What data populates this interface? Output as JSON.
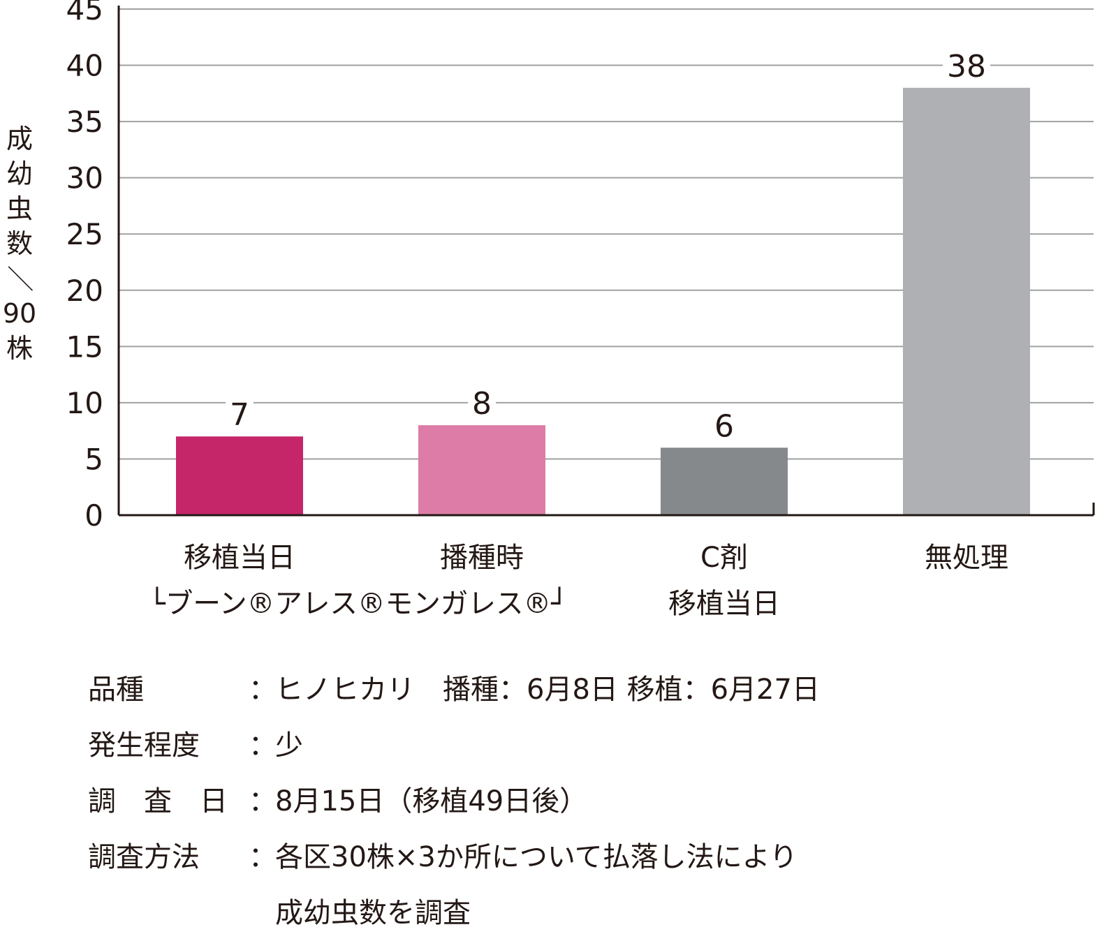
{
  "chart_data": {
    "type": "bar",
    "ylabel": "成幼虫数／90株",
    "ylim": [
      0,
      45
    ],
    "yticks": [
      0,
      5,
      10,
      15,
      20,
      25,
      30,
      35,
      40,
      45
    ],
    "grid": true,
    "categories": [
      {
        "line1": "移植当日",
        "line2": "└ブーン®アレス®モンガレス®┘",
        "value": 7,
        "color": "#c5266a"
      },
      {
        "line1": "播種時",
        "line2": "",
        "value": 8,
        "color": "#dd7da7"
      },
      {
        "line1": "C剤",
        "line2": "移植当日",
        "value": 6,
        "color": "#86898b"
      },
      {
        "line1": "無処理",
        "line2": "",
        "value": 38,
        "color": "#aeb0b3"
      }
    ]
  },
  "notes": [
    {
      "key": "品種",
      "sep": "：",
      "value": "ヒノヒカリ　播種：6月8日 移植：6月27日"
    },
    {
      "key": "発生程度",
      "sep": "：",
      "value": "少"
    },
    {
      "key": "調　査　日",
      "sep": "：",
      "value": "8月15日（移植49日後）"
    },
    {
      "key": "調査方法",
      "sep": "：",
      "value": "各区30株×3か所について払落し法により"
    },
    {
      "key": "",
      "sep": "",
      "value": "成幼虫数を調査"
    }
  ]
}
